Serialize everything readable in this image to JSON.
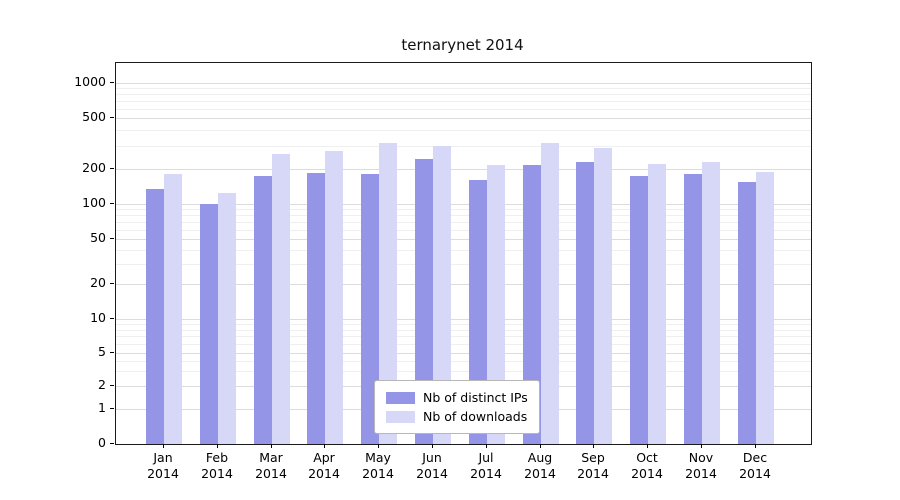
{
  "title": "ternarynet 2014",
  "colors": {
    "distinct_ips": "#9595e8",
    "downloads": "#d7d7f8",
    "grid_major": "#dcdcdc",
    "grid_minor": "#efefef",
    "axis": "#1a1a1a"
  },
  "chart_data": {
    "type": "bar",
    "title": "ternarynet 2014",
    "categories": [
      "Jan",
      "Feb",
      "Mar",
      "Apr",
      "May",
      "Jun",
      "Jul",
      "Aug",
      "Sep",
      "Oct",
      "Nov",
      "Dec"
    ],
    "year": "2014",
    "series": [
      {
        "name": "Nb of distinct IPs",
        "color": "#9595e8",
        "values": [
          135,
          100,
          175,
          185,
          180,
          240,
          160,
          215,
          225,
          175,
          180,
          155
        ]
      },
      {
        "name": "Nb of downloads",
        "color": "#d7d7f8",
        "values": [
          180,
          125,
          260,
          275,
          320,
          300,
          215,
          320,
          290,
          220,
          225,
          190
        ]
      }
    ],
    "xlabel": "",
    "ylabel": "",
    "yticks": [
      0,
      1,
      2,
      5,
      10,
      20,
      50,
      100,
      200,
      500,
      1000
    ],
    "ylim": [
      0,
      1300
    ],
    "scale": "symlog",
    "grid": true,
    "legend_position": "lower center"
  }
}
